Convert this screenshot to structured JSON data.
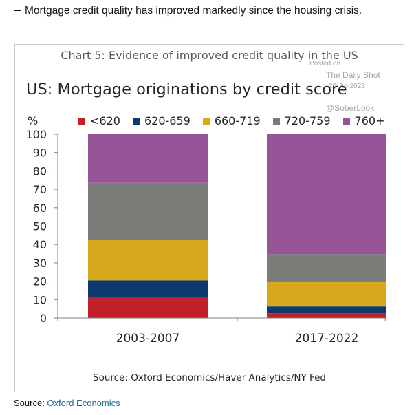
{
  "headline": "Mortgage credit quality has improved markedly since the housing crisis.",
  "source_footer": {
    "label": "Source: ",
    "link_text": "Oxford Economics"
  },
  "watermark": {
    "posted": "Posted on",
    "site": "The Daily Shot",
    "date": "20-Jul-2023",
    "handle": "@SoberLook"
  },
  "chart_data": {
    "type": "bar",
    "stacked": true,
    "title": "Chart 5: Evidence of improved credit quality in the US",
    "subtitle": "US: Mortgage originations by credit score",
    "ylabel": "%",
    "ylim": [
      0,
      100
    ],
    "yticks": [
      0,
      10,
      20,
      30,
      40,
      50,
      60,
      70,
      80,
      90,
      100
    ],
    "categories": [
      "2003-2007",
      "2017-2022"
    ],
    "series": [
      {
        "name": "<620",
        "color": "#c0202a",
        "values": [
          11.5,
          2.5
        ]
      },
      {
        "name": "620-659",
        "color": "#0d3a6e",
        "values": [
          9.0,
          3.8
        ]
      },
      {
        "name": "660-719",
        "color": "#d8a81c",
        "values": [
          22.0,
          13.2
        ]
      },
      {
        "name": "720-759",
        "color": "#7b7b78",
        "values": [
          31.0,
          15.3
        ]
      },
      {
        "name": "760+",
        "color": "#955596",
        "values": [
          26.5,
          65.2
        ]
      }
    ],
    "legend_position": "top",
    "grid": false,
    "source": "Source: Oxford Economics/Haver Analytics/NY Fed"
  }
}
